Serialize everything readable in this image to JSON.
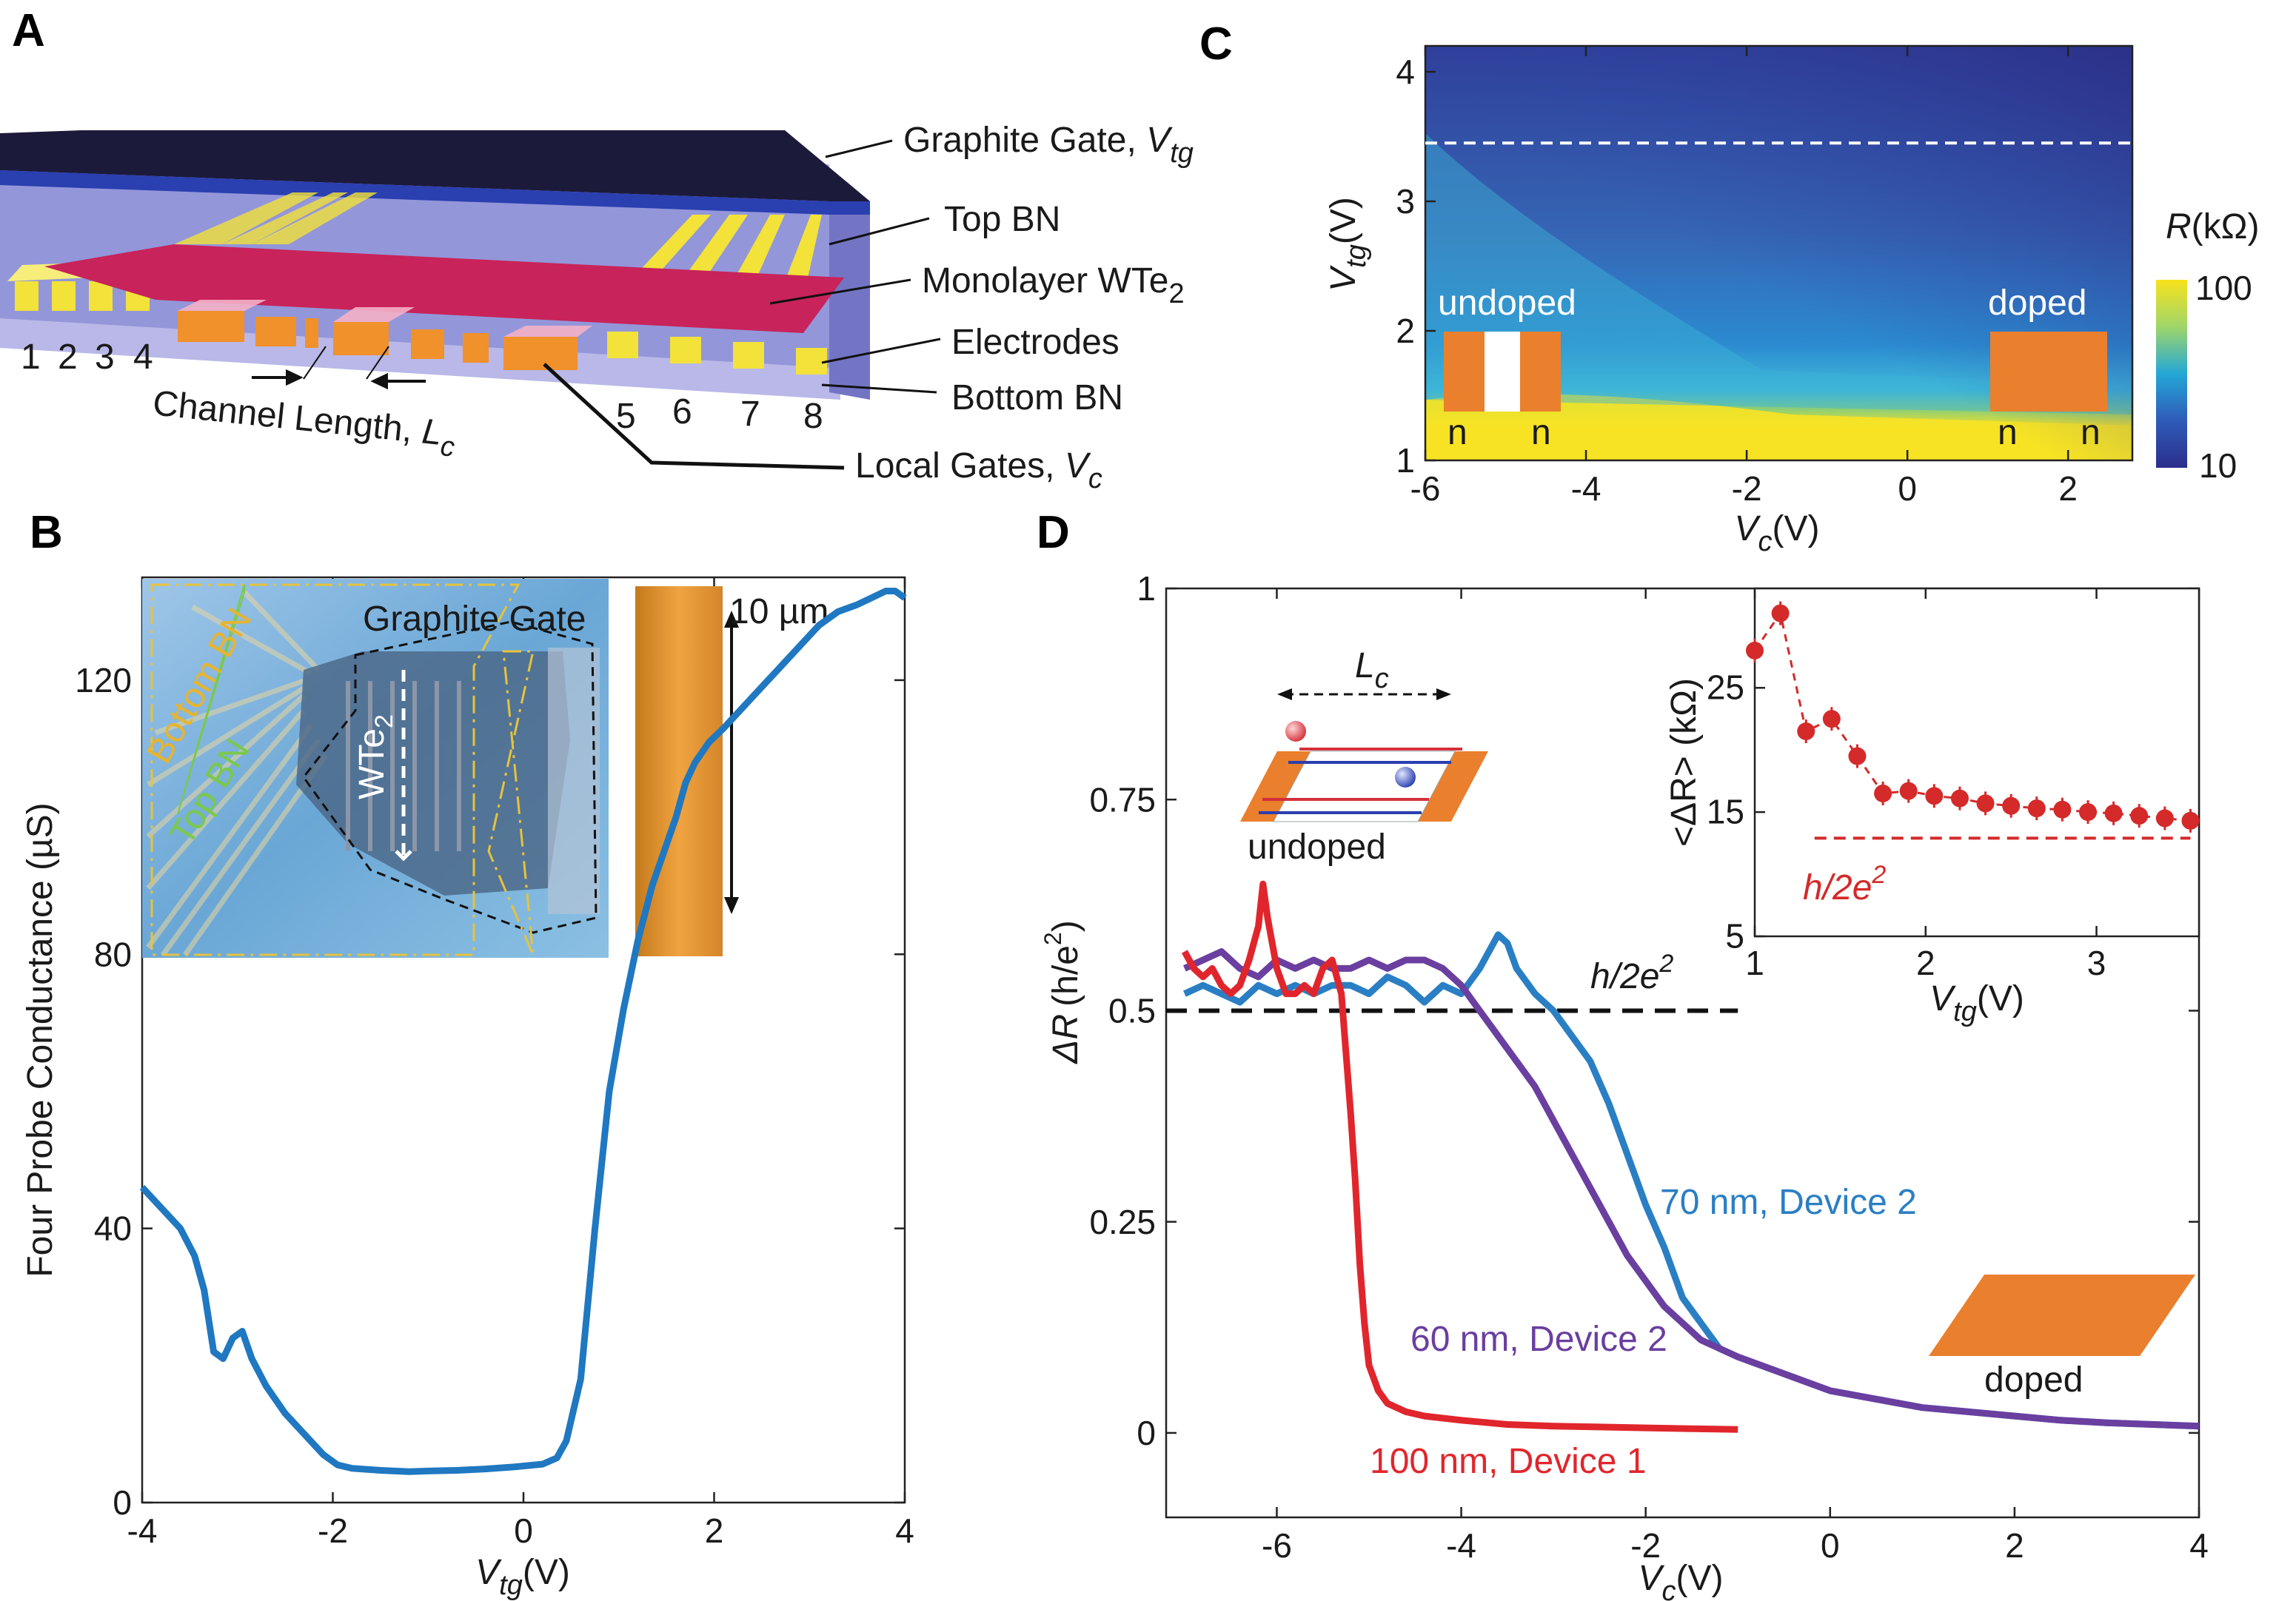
{
  "panels": {
    "A": {
      "letter": "A",
      "labels": {
        "graphite_gate_text": "Graphite Gate, ",
        "graphite_gate_var": "V",
        "graphite_gate_sub": "tg",
        "top_bn": "Top BN",
        "monolayer_text": "Monolayer WTe",
        "monolayer_sub": "2",
        "electrodes": "Electrodes",
        "bottom_bn": "Bottom BN",
        "local_gates_text": "Local Gates, ",
        "local_gates_var": "V",
        "local_gates_sub": "c",
        "channel_length_text": "Channel Length, ",
        "channel_length_var": "L",
        "channel_length_sub": "c"
      },
      "electrode_numbers_left": [
        "1",
        "2",
        "3",
        "4"
      ],
      "electrode_numbers_right": [
        "5",
        "6",
        "7",
        "8"
      ],
      "colors": {
        "graphite": "#1c1a3a",
        "top_bn": "#6a6fc0",
        "wte2": "#c8235a",
        "electrode": "#f2e23a",
        "local_gate": "#f0912b",
        "bottom_bn": "#b9b8e8"
      }
    },
    "B": {
      "letter": "B",
      "inset": {
        "graphite_gate": "Graphite Gate",
        "bottom_bn": "Bottom BN",
        "top_bn": "Top BN",
        "wte2_text": "WTe",
        "wte2_sub": "2",
        "scale_bar": "10 µm"
      }
    },
    "C": {
      "letter": "C",
      "colorbar": {
        "label_var": "R",
        "label_unit": "(kΩ)",
        "max": "100",
        "min": "10"
      },
      "undoped": "undoped",
      "doped": "doped",
      "n_labels": [
        "n",
        "n",
        "n",
        "n"
      ]
    },
    "D": {
      "letter": "D",
      "h2e2_text": "h/2e",
      "h2e2_sup": "2",
      "inset_lc_var": "L",
      "inset_lc_sub": "c",
      "undoped": "undoped",
      "doped": "doped",
      "series_labels": [
        "70 nm, Device 2",
        "60 nm, Device 2",
        "100 nm, Device 1"
      ]
    }
  },
  "chart_data": [
    {
      "id": "B",
      "type": "line",
      "title": "",
      "xlabel_var": "V",
      "xlabel_sub": "tg",
      "xlabel_unit": "(V)",
      "ylabel": "Four Probe Conductance (µS)",
      "xlim": [
        -4,
        4
      ],
      "ylim": [
        0,
        135
      ],
      "xticks": [
        -4,
        -2,
        0,
        2,
        4
      ],
      "xtick_labels": [
        "-4",
        "-2",
        "0",
        "2",
        "4"
      ],
      "yticks": [
        0,
        40,
        80,
        120
      ],
      "ytick_labels": [
        "0",
        "40",
        "80",
        "120"
      ],
      "series": [
        {
          "name": "conductance",
          "color": "#1f78c1",
          "x": [
            -4.0,
            -3.8,
            -3.6,
            -3.45,
            -3.35,
            -3.25,
            -3.15,
            -3.05,
            -2.95,
            -2.85,
            -2.7,
            -2.5,
            -2.3,
            -2.1,
            -1.95,
            -1.8,
            -1.5,
            -1.2,
            -1.0,
            -0.7,
            -0.4,
            -0.1,
            0.2,
            0.35,
            0.45,
            0.6,
            0.75,
            0.9,
            1.05,
            1.2,
            1.35,
            1.5,
            1.6,
            1.7,
            1.8,
            1.95,
            2.1,
            2.3,
            2.5,
            2.7,
            2.9,
            3.1,
            3.3,
            3.5,
            3.65,
            3.8,
            3.9,
            4.0
          ],
          "y": [
            46,
            43,
            40,
            36,
            31,
            22,
            21,
            24,
            25,
            21,
            17,
            13,
            10,
            7,
            5.5,
            5,
            4.7,
            4.5,
            4.6,
            4.7,
            4.9,
            5.2,
            5.6,
            6.5,
            9,
            18,
            40,
            60,
            72,
            82,
            90,
            96,
            100,
            105,
            108,
            111,
            113,
            116,
            119,
            122,
            125,
            128,
            130,
            131,
            132,
            133,
            133,
            132
          ]
        }
      ]
    },
    {
      "id": "C",
      "type": "heatmap",
      "title": "",
      "xlabel_var": "V",
      "xlabel_sub": "c",
      "xlabel_unit": "(V)",
      "ylabel_var": "V",
      "ylabel_sub": "tg",
      "ylabel_unit": "(V)",
      "xlim": [
        -6,
        2.8
      ],
      "ylim": [
        1,
        4.2
      ],
      "xticks": [
        -6,
        -4,
        -2,
        0,
        2
      ],
      "xtick_labels": [
        "-6",
        "-4",
        "-2",
        "0",
        "2"
      ],
      "yticks": [
        1,
        2,
        3,
        4
      ],
      "ytick_labels": [
        "1",
        "2",
        "3",
        "4"
      ],
      "color_scale": "log",
      "color_range_kohm": [
        10,
        100
      ],
      "dashed_line_vtg": 3.45
    },
    {
      "id": "D",
      "type": "line",
      "title": "",
      "xlabel_var": "V",
      "xlabel_sub": "c",
      "xlabel_unit": "(V)",
      "ylabel_var": "ΔR",
      "ylabel_unit": "(h/e",
      "ylabel_sup": "2",
      "ylabel_close": ")",
      "xlim": [
        -7.2,
        4
      ],
      "ylim": [
        -0.1,
        1
      ],
      "xticks": [
        -6,
        -4,
        -2,
        0,
        2,
        4
      ],
      "xtick_labels": [
        "-6",
        "-4",
        "-2",
        "0",
        "2",
        "4"
      ],
      "yticks": [
        0,
        0.25,
        0.5,
        0.75,
        1
      ],
      "ytick_labels": [
        "0",
        "0.25",
        "0.5",
        "0.75",
        "1"
      ],
      "reference_line": {
        "y": 0.5,
        "label": "h/2e2"
      },
      "series": [
        {
          "name": "70 nm, Device 2",
          "color": "#2a7fc4",
          "x": [
            -7.0,
            -6.8,
            -6.6,
            -6.4,
            -6.2,
            -6.0,
            -5.8,
            -5.6,
            -5.4,
            -5.2,
            -5.0,
            -4.8,
            -4.6,
            -4.4,
            -4.2,
            -4.0,
            -3.8,
            -3.6,
            -3.5,
            -3.4,
            -3.2,
            -3.0,
            -2.8,
            -2.6,
            -2.4,
            -2.2,
            -2.0,
            -1.8,
            -1.6,
            -1.4,
            -1.2,
            -1.0,
            -0.5,
            0.0,
            0.5,
            1.0,
            1.5,
            2.0,
            2.5,
            3.0,
            3.5,
            4.0
          ],
          "y": [
            0.52,
            0.53,
            0.52,
            0.51,
            0.53,
            0.52,
            0.53,
            0.52,
            0.53,
            0.53,
            0.52,
            0.54,
            0.53,
            0.51,
            0.53,
            0.52,
            0.55,
            0.59,
            0.58,
            0.55,
            0.52,
            0.5,
            0.47,
            0.44,
            0.39,
            0.33,
            0.27,
            0.22,
            0.16,
            0.13,
            0.1,
            0.09,
            0.07,
            0.05,
            0.04,
            0.03,
            0.025,
            0.02,
            0.015,
            0.012,
            0.01,
            0.008
          ]
        },
        {
          "name": "60 nm, Device 2",
          "color": "#6a3fa0",
          "x": [
            -7.0,
            -6.8,
            -6.6,
            -6.4,
            -6.2,
            -6.0,
            -5.8,
            -5.6,
            -5.4,
            -5.2,
            -5.0,
            -4.8,
            -4.6,
            -4.4,
            -4.2,
            -4.0,
            -3.8,
            -3.6,
            -3.4,
            -3.2,
            -3.0,
            -2.8,
            -2.6,
            -2.4,
            -2.2,
            -2.0,
            -1.8,
            -1.6,
            -1.4,
            -1.2,
            -1.0,
            -0.5,
            0.0,
            0.5,
            1.0,
            1.5,
            2.0,
            2.5,
            3.0,
            3.5,
            4.0
          ],
          "y": [
            0.55,
            0.56,
            0.57,
            0.55,
            0.54,
            0.56,
            0.55,
            0.56,
            0.55,
            0.55,
            0.56,
            0.55,
            0.56,
            0.56,
            0.55,
            0.53,
            0.5,
            0.47,
            0.44,
            0.41,
            0.37,
            0.33,
            0.29,
            0.25,
            0.21,
            0.18,
            0.15,
            0.13,
            0.11,
            0.1,
            0.09,
            0.07,
            0.05,
            0.04,
            0.03,
            0.025,
            0.02,
            0.015,
            0.012,
            0.01,
            0.008
          ]
        },
        {
          "name": "100 nm, Device 1",
          "color": "#e0262c",
          "x": [
            -7.0,
            -6.9,
            -6.8,
            -6.7,
            -6.6,
            -6.5,
            -6.4,
            -6.3,
            -6.2,
            -6.15,
            -6.1,
            -6.0,
            -5.9,
            -5.8,
            -5.7,
            -5.6,
            -5.5,
            -5.4,
            -5.3,
            -5.25,
            -5.2,
            -5.15,
            -5.1,
            -5.05,
            -5.0,
            -4.9,
            -4.8,
            -4.6,
            -4.4,
            -4.0,
            -3.5,
            -3.0,
            -2.5,
            -2.0,
            -1.5,
            -1.0
          ],
          "y": [
            0.57,
            0.55,
            0.54,
            0.55,
            0.53,
            0.52,
            0.53,
            0.56,
            0.6,
            0.65,
            0.61,
            0.55,
            0.52,
            0.52,
            0.53,
            0.52,
            0.55,
            0.56,
            0.52,
            0.45,
            0.38,
            0.3,
            0.2,
            0.13,
            0.08,
            0.05,
            0.035,
            0.025,
            0.02,
            0.015,
            0.01,
            0.008,
            0.007,
            0.006,
            0.005,
            0.004
          ]
        }
      ]
    },
    {
      "id": "D-inset",
      "type": "scatter",
      "title": "",
      "xlabel_var": "V",
      "xlabel_sub": "tg",
      "xlabel_unit": "(V)",
      "ylabel_text": "<ΔR> (kΩ)",
      "xlim": [
        1,
        3.6
      ],
      "ylim": [
        5,
        33
      ],
      "xticks": [
        1,
        2,
        3
      ],
      "xtick_labels": [
        "1",
        "2",
        "3"
      ],
      "yticks": [
        5,
        15,
        25
      ],
      "ytick_labels": [
        "5",
        "15",
        "25"
      ],
      "reference_line": {
        "y": 12.9,
        "label_text": "h/2e",
        "label_sup": "2"
      },
      "series": [
        {
          "name": "mean ΔR",
          "color": "#d42a2a",
          "x": [
            1.0,
            1.15,
            1.3,
            1.45,
            1.6,
            1.75,
            1.9,
            2.05,
            2.2,
            2.35,
            2.5,
            2.65,
            2.8,
            2.95,
            3.1,
            3.25,
            3.4,
            3.55
          ],
          "y": [
            28,
            31,
            21.5,
            22.5,
            19.5,
            16.5,
            16.7,
            16.3,
            16.1,
            15.7,
            15.5,
            15.3,
            15.2,
            15.0,
            14.9,
            14.7,
            14.5,
            14.3
          ]
        }
      ]
    }
  ]
}
